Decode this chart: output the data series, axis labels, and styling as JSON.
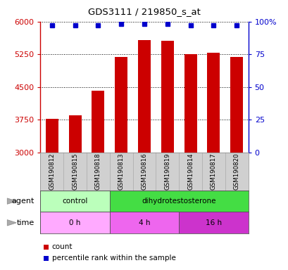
{
  "title": "GDS3111 / 219850_s_at",
  "samples": [
    "GSM190812",
    "GSM190815",
    "GSM190818",
    "GSM190813",
    "GSM190816",
    "GSM190819",
    "GSM190814",
    "GSM190817",
    "GSM190820"
  ],
  "bar_values": [
    3780,
    3860,
    4420,
    5190,
    5580,
    5560,
    5260,
    5290,
    5190
  ],
  "percentile_values": [
    97,
    97,
    97,
    98,
    98,
    98,
    97,
    97,
    97
  ],
  "bar_color": "#cc0000",
  "dot_color": "#0000cc",
  "ylim_left": [
    3000,
    6000
  ],
  "ylim_right": [
    0,
    100
  ],
  "yticks_left": [
    3000,
    3750,
    4500,
    5250,
    6000
  ],
  "yticks_right": [
    0,
    25,
    50,
    75,
    100
  ],
  "ytick_labels_right": [
    "0",
    "25",
    "50",
    "75",
    "100%"
  ],
  "agent_groups": [
    {
      "label": "control",
      "start": 0,
      "end": 3,
      "color": "#bbffbb"
    },
    {
      "label": "dihydrotestosterone",
      "start": 3,
      "end": 9,
      "color": "#44dd44"
    }
  ],
  "time_groups": [
    {
      "label": "0 h",
      "start": 0,
      "end": 3,
      "color": "#ffaaff"
    },
    {
      "label": "4 h",
      "start": 3,
      "end": 6,
      "color": "#ee66ee"
    },
    {
      "label": "16 h",
      "start": 6,
      "end": 9,
      "color": "#cc33cc"
    }
  ],
  "legend_items": [
    {
      "color": "#cc0000",
      "label": "count"
    },
    {
      "color": "#0000cc",
      "label": "percentile rank within the sample"
    }
  ],
  "sample_bg": "#d0d0d0",
  "plot_bg": "#ffffff",
  "grid_linestyle": "dotted",
  "bar_width": 0.55
}
